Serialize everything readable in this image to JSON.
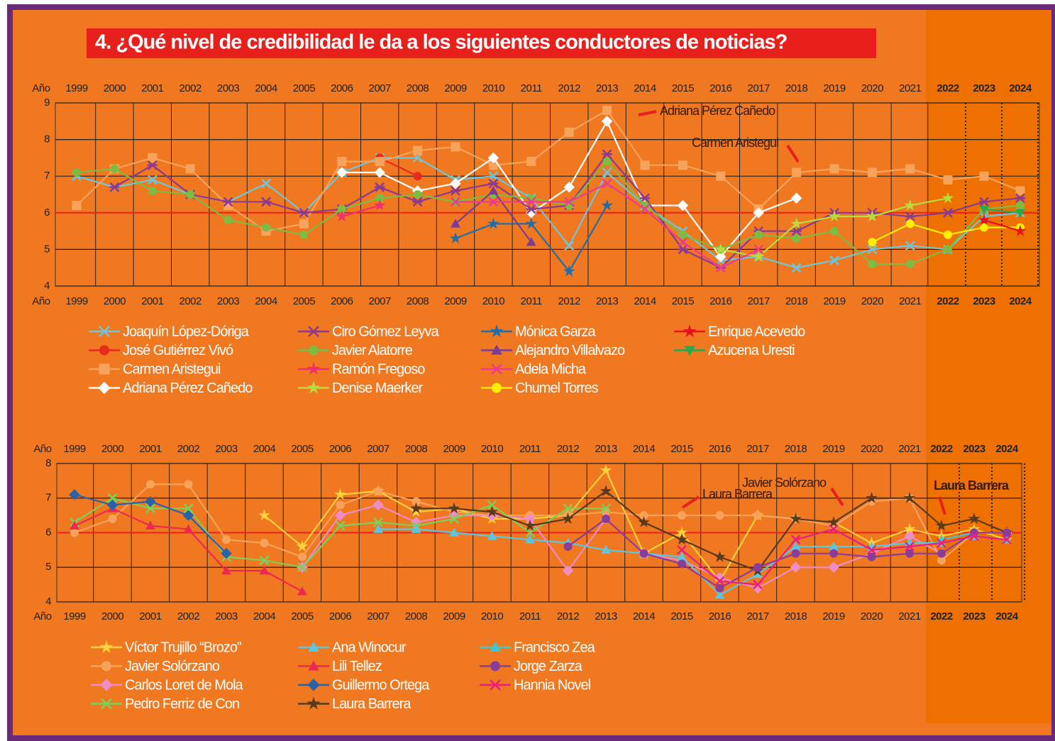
{
  "title": "4. ¿Qué nivel de credibilidad le da a los siguientes conductores de noticias?",
  "chart_data": [
    {
      "type": "line",
      "x_label": "Año",
      "categories": [
        "1999",
        "2000",
        "2001",
        "2002",
        "2003",
        "2004",
        "2005",
        "2006",
        "2007",
        "2008",
        "2009",
        "2010",
        "2011",
        "2012",
        "2013",
        "2014",
        "2015",
        "2016",
        "2017",
        "2018",
        "2019",
        "2020",
        "2021",
        "2022",
        "2023",
        "2024"
      ],
      "ylim": [
        4,
        9
      ],
      "yticks": [
        4,
        5,
        6,
        7,
        8,
        9
      ],
      "grid": true,
      "reference_line": 6,
      "reference_color": "#e8221c",
      "annotations": [
        "Adriana Pérez Cañedo",
        "Carmen Aristegui"
      ],
      "series": [
        {
          "name": "Joaquín López-Dóriga",
          "color": "#6ec6d8",
          "marker": "x",
          "values": [
            7.0,
            6.7,
            6.9,
            6.5,
            6.3,
            6.8,
            6.0,
            7.1,
            7.5,
            7.5,
            6.9,
            7.0,
            6.4,
            5.1,
            7.1,
            6.2,
            5.5,
            4.7,
            4.8,
            4.5,
            4.7,
            5.0,
            5.1,
            5.0,
            5.9,
            6.0
          ]
        },
        {
          "name": "José Gutiérrez Vivó",
          "color": "#e62a20",
          "marker": "circle",
          "values": [
            null,
            null,
            null,
            null,
            null,
            null,
            null,
            null,
            7.5,
            7.0,
            null,
            null,
            null,
            null,
            null,
            null,
            null,
            null,
            null,
            null,
            null,
            null,
            null,
            null,
            null,
            null
          ]
        },
        {
          "name": "Carmen Aristegui",
          "color": "#f7a35c",
          "marker": "square",
          "values": [
            6.2,
            7.2,
            7.5,
            7.2,
            6.2,
            5.5,
            5.7,
            7.4,
            7.4,
            7.7,
            7.8,
            7.3,
            7.4,
            8.2,
            8.8,
            7.3,
            7.3,
            7.0,
            6.1,
            7.1,
            7.2,
            7.1,
            7.2,
            6.9,
            7.0,
            6.6
          ]
        },
        {
          "name": "Adriana Pérez Cañedo",
          "color": "#ffffff",
          "marker": "diamond",
          "values": [
            null,
            null,
            null,
            null,
            null,
            null,
            null,
            7.1,
            7.1,
            6.6,
            6.8,
            7.5,
            6.0,
            6.7,
            8.5,
            6.2,
            6.2,
            4.8,
            6.0,
            6.4,
            null,
            null,
            null,
            null,
            null,
            null
          ]
        },
        {
          "name": "Ciro Gómez Leyva",
          "color": "#8b3a8f",
          "marker": "asterisk",
          "values": [
            null,
            6.7,
            7.3,
            6.5,
            6.3,
            6.3,
            6.0,
            6.1,
            6.7,
            6.3,
            6.6,
            6.8,
            6.1,
            6.2,
            7.6,
            6.4,
            5.0,
            4.5,
            5.5,
            5.5,
            6.0,
            6.0,
            5.9,
            6.0,
            6.3,
            6.4
          ]
        },
        {
          "name": "Javier Alatorre",
          "color": "#7dbb42",
          "marker": "circle",
          "values": [
            7.1,
            7.2,
            6.6,
            6.5,
            5.8,
            5.6,
            5.4,
            6.1,
            6.4,
            6.5,
            6.3,
            6.5,
            6.4,
            6.2,
            7.4,
            6.2,
            5.4,
            5.0,
            5.4,
            5.3,
            5.5,
            4.6,
            4.6,
            5.0,
            6.1,
            6.2
          ]
        },
        {
          "name": "Ramón Fregoso",
          "color": "#f0306a",
          "marker": "star",
          "values": [
            null,
            null,
            null,
            null,
            null,
            null,
            null,
            5.9,
            6.2,
            null,
            null,
            null,
            null,
            null,
            null,
            null,
            null,
            null,
            null,
            null,
            null,
            null,
            null,
            null,
            null,
            null
          ]
        },
        {
          "name": "Denise Maerker",
          "color": "#b8dc3c",
          "marker": "star",
          "values": [
            null,
            null,
            null,
            null,
            null,
            null,
            null,
            null,
            null,
            null,
            null,
            null,
            null,
            null,
            null,
            null,
            null,
            5.0,
            4.8,
            5.7,
            5.9,
            5.9,
            6.2,
            6.4,
            null,
            null
          ]
        },
        {
          "name": "Mónica Garza",
          "color": "#1f6ea8",
          "marker": "star",
          "values": [
            null,
            null,
            null,
            null,
            null,
            null,
            null,
            null,
            null,
            null,
            5.3,
            5.7,
            5.7,
            4.4,
            6.2,
            null,
            null,
            null,
            null,
            null,
            null,
            null,
            null,
            null,
            null,
            null
          ]
        },
        {
          "name": "Alejandro Villalvazo",
          "color": "#7a3c96",
          "marker": "triangle",
          "values": [
            null,
            null,
            null,
            null,
            null,
            null,
            null,
            null,
            null,
            null,
            5.7,
            6.6,
            5.2,
            null,
            null,
            null,
            null,
            null,
            null,
            null,
            null,
            null,
            null,
            null,
            null,
            null
          ]
        },
        {
          "name": "Adela Micha",
          "color": "#ec3d8c",
          "marker": "x",
          "values": [
            null,
            null,
            null,
            null,
            null,
            null,
            null,
            null,
            null,
            null,
            6.3,
            6.3,
            6.3,
            6.3,
            6.8,
            6.1,
            5.2,
            4.5,
            5.0,
            null,
            null,
            null,
            null,
            null,
            null,
            null
          ]
        },
        {
          "name": "Chumel Torres",
          "color": "#ffee00",
          "marker": "circle",
          "values": [
            null,
            null,
            null,
            null,
            null,
            null,
            null,
            null,
            null,
            null,
            null,
            null,
            null,
            null,
            null,
            null,
            null,
            null,
            null,
            null,
            null,
            5.2,
            5.7,
            5.4,
            5.6,
            5.6
          ]
        },
        {
          "name": "Enrique Acevedo",
          "color": "#e8101c",
          "marker": "star",
          "values": [
            null,
            null,
            null,
            null,
            null,
            null,
            null,
            null,
            null,
            null,
            null,
            null,
            null,
            null,
            null,
            null,
            null,
            null,
            null,
            null,
            null,
            null,
            null,
            null,
            5.8,
            5.5
          ]
        },
        {
          "name": "Azucena Uresti",
          "color": "#2aa84a",
          "marker": "triangle-down",
          "values": [
            null,
            null,
            null,
            null,
            null,
            null,
            null,
            null,
            null,
            null,
            null,
            null,
            null,
            null,
            null,
            null,
            null,
            null,
            null,
            null,
            null,
            null,
            null,
            null,
            6.1,
            6.0
          ]
        }
      ]
    },
    {
      "type": "line",
      "x_label": "Año",
      "categories": [
        "1999",
        "2000",
        "2001",
        "2002",
        "2003",
        "2004",
        "2005",
        "2006",
        "2007",
        "2008",
        "2009",
        "2010",
        "2011",
        "2012",
        "2013",
        "2014",
        "2015",
        "2016",
        "2017",
        "2018",
        "2019",
        "2020",
        "2021",
        "2022",
        "2023",
        "2024"
      ],
      "ylim": [
        4,
        8
      ],
      "yticks": [
        4,
        5,
        6,
        7,
        8
      ],
      "grid": true,
      "reference_line": 6,
      "reference_color": "#e8221c",
      "annotations": [
        "Laura Barrera",
        "Javier Solórzano",
        "Laura Barrera"
      ],
      "series": [
        {
          "name": "Víctor Trujillo “Brozo”",
          "color": "#ffd23c",
          "marker": "star",
          "values": [
            null,
            null,
            null,
            null,
            null,
            6.5,
            5.6,
            7.1,
            7.2,
            6.6,
            6.7,
            6.4,
            6.4,
            6.5,
            7.8,
            5.4,
            6.0,
            4.6,
            6.5,
            6.4,
            6.3,
            5.7,
            6.1,
            5.9,
            6.1,
            5.8
          ]
        },
        {
          "name": "Javier Solórzano",
          "color": "#f7a35c",
          "marker": "circle",
          "values": [
            6.0,
            6.4,
            7.4,
            7.4,
            5.8,
            5.7,
            5.3,
            6.8,
            7.2,
            6.9,
            6.6,
            6.5,
            6.5,
            6.5,
            6.6,
            6.5,
            6.5,
            6.5,
            6.5,
            6.4,
            6.2,
            6.9,
            7.0,
            5.2,
            6.0,
            6.0
          ]
        },
        {
          "name": "Carlos Loret de Mola",
          "color": "#f08cc8",
          "marker": "diamond",
          "values": [
            null,
            null,
            null,
            null,
            null,
            null,
            5.0,
            6.5,
            6.8,
            6.3,
            6.5,
            6.5,
            6.4,
            4.9,
            6.4,
            5.4,
            5.2,
            4.7,
            4.4,
            5.0,
            5.0,
            5.4,
            5.9,
            5.4,
            6.0,
            6.0
          ]
        },
        {
          "name": "Pedro Ferriz de Con",
          "color": "#7dcf5a",
          "marker": "x",
          "values": [
            6.3,
            7.0,
            6.7,
            6.7,
            5.3,
            5.2,
            5.0,
            6.2,
            6.3,
            6.2,
            6.4,
            6.8,
            6.0,
            6.7,
            6.7,
            null,
            null,
            null,
            null,
            null,
            null,
            null,
            null,
            null,
            null,
            null
          ]
        },
        {
          "name": "Ana Winocur",
          "color": "#5cc6e0",
          "marker": "triangle",
          "values": [
            null,
            null,
            null,
            null,
            null,
            null,
            null,
            null,
            6.1,
            6.1,
            6.0,
            5.9,
            5.8,
            5.7,
            5.5,
            5.4,
            5.3,
            4.2,
            4.8,
            5.6,
            5.6,
            5.6,
            5.7,
            5.7,
            5.9,
            5.8
          ]
        },
        {
          "name": "Lili Tellez",
          "color": "#ec2a50",
          "marker": "triangle",
          "values": [
            6.2,
            6.7,
            6.2,
            6.1,
            4.9,
            4.9,
            4.3,
            null,
            null,
            null,
            null,
            null,
            null,
            null,
            null,
            null,
            null,
            null,
            null,
            null,
            null,
            null,
            null,
            null,
            null,
            null
          ]
        },
        {
          "name": "Guillermo Ortega",
          "color": "#2a62a8",
          "marker": "diamond",
          "values": [
            7.1,
            6.8,
            6.9,
            6.5,
            5.4,
            null,
            null,
            null,
            null,
            null,
            null,
            null,
            null,
            null,
            null,
            null,
            null,
            null,
            null,
            null,
            null,
            null,
            null,
            null,
            null,
            null
          ]
        },
        {
          "name": "Laura Barrera",
          "color": "#5a3a1c",
          "marker": "star",
          "values": [
            null,
            null,
            null,
            null,
            null,
            null,
            null,
            null,
            null,
            6.7,
            6.7,
            6.6,
            6.2,
            6.4,
            7.2,
            6.3,
            5.8,
            5.3,
            4.9,
            6.4,
            6.3,
            7.0,
            7.0,
            6.2,
            6.4,
            6.0
          ]
        },
        {
          "name": "Francisco Zea",
          "color": "#3cc8d0",
          "marker": "triangle",
          "values": [
            null,
            null,
            null,
            null,
            null,
            null,
            null,
            null,
            null,
            null,
            null,
            null,
            null,
            null,
            null,
            null,
            null,
            null,
            null,
            null,
            null,
            null,
            null,
            5.8,
            6.0,
            6.0
          ]
        },
        {
          "name": "Jorge Zarza",
          "color": "#8a3c9a",
          "marker": "circle",
          "values": [
            null,
            null,
            null,
            null,
            null,
            null,
            null,
            null,
            null,
            null,
            null,
            null,
            null,
            5.6,
            6.4,
            5.4,
            5.1,
            4.4,
            5.0,
            5.4,
            5.4,
            5.3,
            5.4,
            5.4,
            6.0,
            6.0
          ]
        },
        {
          "name": "Hannia Novel",
          "color": "#e8207c",
          "marker": "x",
          "values": [
            null,
            null,
            null,
            null,
            null,
            null,
            null,
            null,
            null,
            null,
            null,
            null,
            null,
            null,
            null,
            null,
            5.5,
            4.6,
            4.5,
            5.8,
            6.1,
            5.5,
            5.6,
            5.7,
            5.9,
            5.8
          ]
        }
      ]
    }
  ]
}
